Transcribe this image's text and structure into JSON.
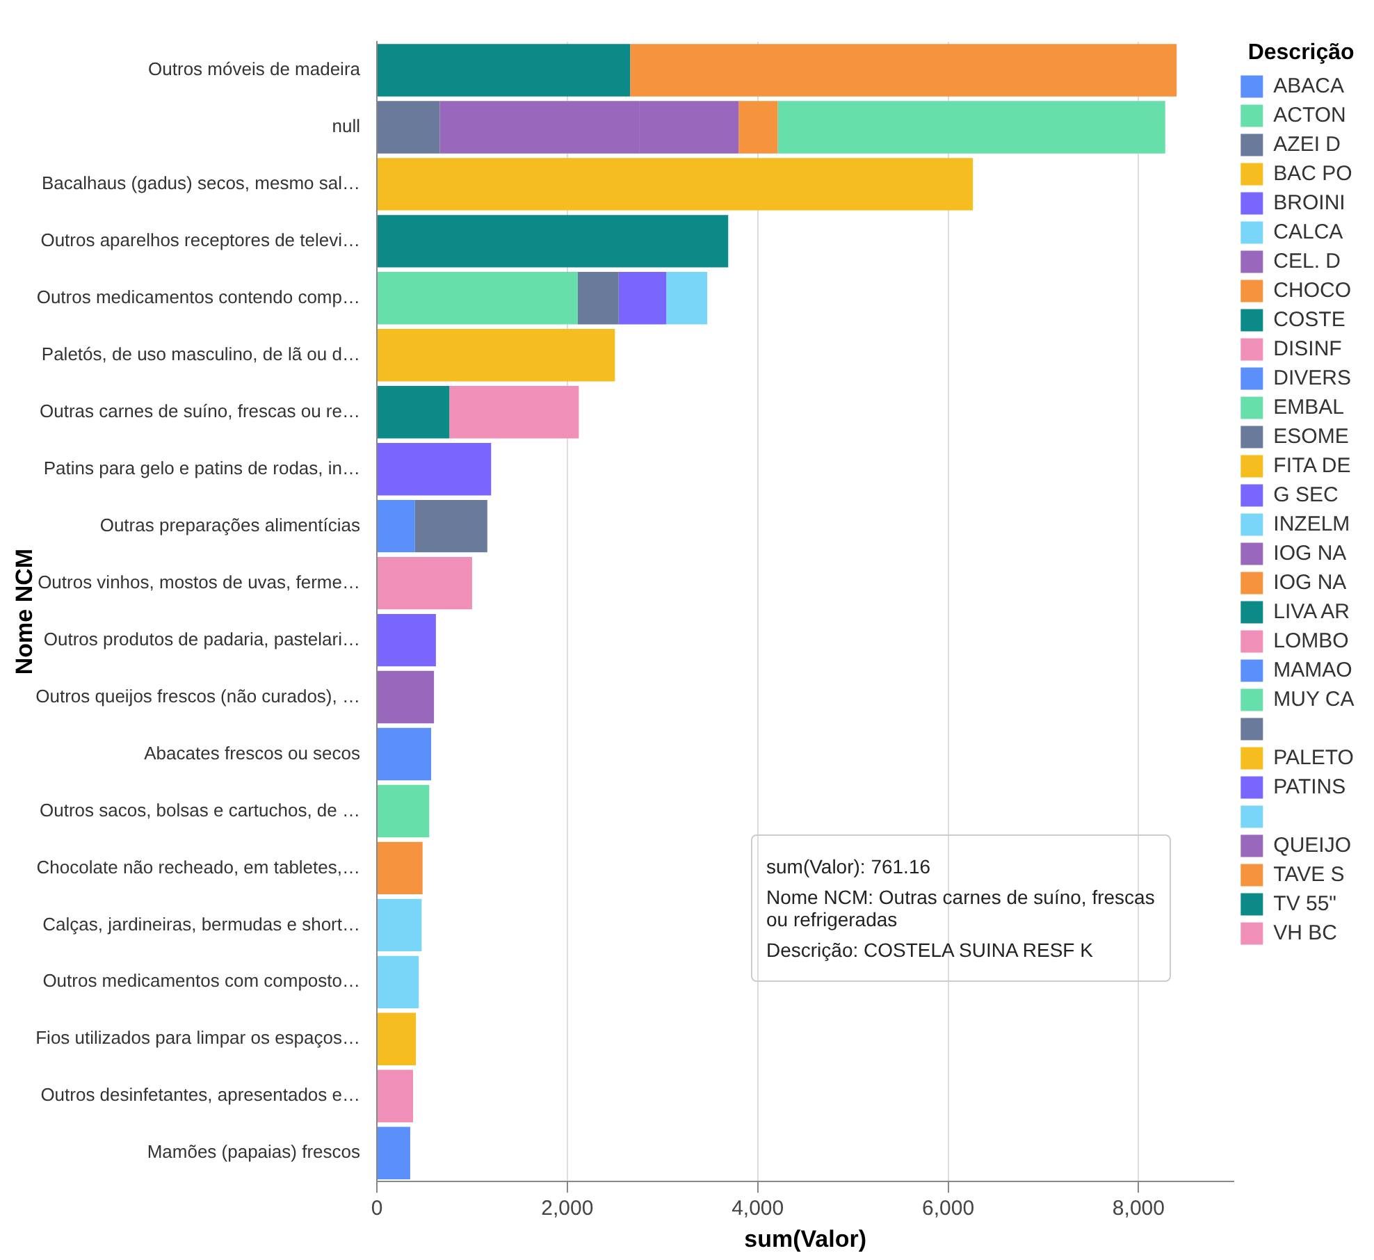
{
  "chart_data": {
    "type": "bar",
    "orientation": "horizontal",
    "stacked": true,
    "xlabel": "sum(Valor)",
    "ylabel": "Nome NCM",
    "legend_title": "Descrição",
    "legend": "right",
    "grid": "x",
    "categories": [
      "Outros móveis de madeira",
      "null",
      "Bacalhaus (gadus) secos, mesmo sal…",
      "Outros aparelhos receptores de televi…",
      "Outros medicamentos contendo comp…",
      "Paletós, de uso masculino, de lã ou d…",
      "Outras carnes de suíno, frescas ou re…",
      "Patins para gelo e patins de rodas, in…",
      "Outras preparações alimentícias",
      "Outros vinhos, mostos de uvas, ferme…",
      "Outros produtos de padaria, pastelari…",
      "Outros queijos frescos (não curados), …",
      "Abacates frescos ou secos",
      "Outros sacos, bolsas e cartuchos, de …",
      "Chocolate não recheado, em tabletes,…",
      "Calças, jardineiras, bermudas e short…",
      "Outros medicamentos com composto…",
      "Fios utilizados para limpar os espaços…",
      "Outros desinfetantes, apresentados e…",
      "Mamões (papaias) frescos"
    ],
    "xlim": [
      0,
      9000
    ],
    "xticks": [
      0,
      {
        "value": 2000,
        "label": "2,000"
      },
      {
        "value": 4000,
        "label": "4,000"
      },
      {
        "value": 6000,
        "label": "6,000"
      },
      {
        "value": 8000,
        "label": "8,000"
      }
    ],
    "series": [
      {
        "name": "ABACA",
        "color": "#5b8ff9",
        "values": [
          null,
          null,
          null,
          null,
          null,
          null,
          null,
          null,
          null,
          null,
          null,
          null,
          570,
          null,
          null,
          null,
          null,
          null,
          null,
          null
        ]
      },
      {
        "name": "ACTON",
        "color": "#66dfab",
        "values": [
          null,
          null,
          null,
          null,
          2110,
          null,
          null,
          null,
          null,
          null,
          null,
          null,
          null,
          null,
          null,
          null,
          null,
          null,
          null,
          null
        ]
      },
      {
        "name": "AZEI D",
        "color": "#6a7a9b",
        "values": [
          null,
          660,
          null,
          null,
          null,
          null,
          null,
          null,
          null,
          null,
          null,
          null,
          null,
          null,
          null,
          null,
          null,
          null,
          null,
          null
        ]
      },
      {
        "name": "BAC PO",
        "color": "#f5bd1f",
        "values": [
          null,
          null,
          6260,
          null,
          null,
          null,
          null,
          null,
          null,
          null,
          null,
          null,
          null,
          null,
          null,
          null,
          null,
          null,
          null,
          null
        ]
      },
      {
        "name": "BROINI",
        "color": "#7866fd",
        "values": [
          null,
          null,
          null,
          null,
          null,
          null,
          null,
          null,
          null,
          null,
          620,
          null,
          null,
          null,
          null,
          null,
          null,
          null,
          null,
          null
        ]
      },
      {
        "name": "CALCA",
        "color": "#7ad6f8",
        "values": [
          null,
          null,
          null,
          null,
          null,
          null,
          null,
          null,
          null,
          null,
          null,
          null,
          null,
          null,
          null,
          470,
          null,
          null,
          null,
          null
        ]
      },
      {
        "name": "CEL. D",
        "color": "#9967bb",
        "values": [
          null,
          2100,
          null,
          null,
          null,
          null,
          null,
          null,
          null,
          null,
          null,
          null,
          null,
          null,
          null,
          null,
          null,
          null,
          null,
          null
        ]
      },
      {
        "name": "CHOCO",
        "color": "#f5933f",
        "values": [
          null,
          null,
          null,
          null,
          null,
          null,
          null,
          null,
          null,
          null,
          null,
          null,
          null,
          null,
          480,
          null,
          null,
          null,
          null,
          null
        ]
      },
      {
        "name": "COSTE",
        "color": "#0b8a87",
        "values": [
          null,
          null,
          null,
          null,
          null,
          null,
          761.16,
          null,
          null,
          null,
          null,
          null,
          null,
          null,
          null,
          null,
          null,
          null,
          null,
          null
        ]
      },
      {
        "name": "DISINF",
        "color": "#f08fb8",
        "values": [
          null,
          null,
          null,
          null,
          null,
          null,
          null,
          null,
          null,
          null,
          null,
          null,
          null,
          null,
          null,
          null,
          null,
          null,
          380,
          null
        ]
      },
      {
        "name": "DIVERS",
        "color": "#5b8ff9",
        "values": [
          null,
          null,
          null,
          null,
          null,
          null,
          null,
          null,
          400,
          null,
          null,
          null,
          null,
          null,
          null,
          null,
          null,
          null,
          null,
          null
        ]
      },
      {
        "name": "EMBAL",
        "color": "#66dfab",
        "values": [
          null,
          null,
          null,
          null,
          null,
          null,
          null,
          null,
          null,
          null,
          null,
          null,
          null,
          550,
          null,
          null,
          null,
          null,
          null,
          null
        ]
      },
      {
        "name": "ESOME",
        "color": "#6a7a9b",
        "values": [
          null,
          null,
          null,
          null,
          430,
          null,
          null,
          null,
          null,
          null,
          null,
          null,
          null,
          null,
          null,
          null,
          null,
          null,
          null,
          null
        ]
      },
      {
        "name": "FITA DE",
        "color": "#f5bd1f",
        "values": [
          null,
          null,
          null,
          null,
          null,
          null,
          null,
          null,
          null,
          null,
          null,
          null,
          null,
          null,
          null,
          null,
          null,
          410,
          null,
          null
        ]
      },
      {
        "name": "G SEC",
        "color": "#7866fd",
        "values": [
          null,
          null,
          null,
          null,
          500,
          null,
          null,
          null,
          null,
          null,
          null,
          null,
          null,
          null,
          null,
          null,
          null,
          null,
          null,
          null
        ]
      },
      {
        "name": "INZELM",
        "color": "#7ad6f8",
        "values": [
          null,
          null,
          null,
          null,
          null,
          null,
          null,
          null,
          null,
          null,
          null,
          null,
          null,
          null,
          null,
          null,
          440,
          null,
          null,
          null
        ]
      },
      {
        "name": "IOG NA",
        "color": "#9967bb",
        "values": [
          null,
          1040,
          null,
          null,
          null,
          null,
          null,
          null,
          null,
          null,
          null,
          null,
          null,
          null,
          null,
          null,
          null,
          null,
          null,
          null
        ]
      },
      {
        "name": "IOG NA",
        "color": "#f5933f",
        "values": [
          null,
          410,
          null,
          null,
          null,
          null,
          null,
          null,
          null,
          null,
          null,
          null,
          null,
          null,
          null,
          null,
          null,
          null,
          null,
          null
        ]
      },
      {
        "name": "LIVA AR",
        "color": "#0b8a87",
        "values": [
          2660,
          null,
          null,
          null,
          null,
          null,
          null,
          null,
          null,
          null,
          null,
          null,
          null,
          null,
          null,
          null,
          null,
          null,
          null,
          null
        ]
      },
      {
        "name": "LOMBO",
        "color": "#f08fb8",
        "values": [
          null,
          null,
          null,
          null,
          null,
          null,
          1360,
          null,
          null,
          null,
          null,
          null,
          null,
          null,
          null,
          null,
          null,
          null,
          null,
          null
        ]
      },
      {
        "name": "MAMAO",
        "color": "#5b8ff9",
        "values": [
          null,
          null,
          null,
          null,
          null,
          null,
          null,
          null,
          null,
          null,
          null,
          null,
          null,
          null,
          null,
          null,
          null,
          null,
          null,
          350
        ]
      },
      {
        "name": "MUY CA",
        "color": "#66dfab",
        "values": [
          null,
          4070,
          null,
          null,
          null,
          null,
          null,
          null,
          null,
          null,
          null,
          null,
          null,
          null,
          null,
          null,
          null,
          null,
          null,
          null
        ]
      },
      {
        "color": "#6a7a9b",
        "values": [
          null,
          null,
          null,
          null,
          null,
          null,
          null,
          null,
          760,
          null,
          null,
          null,
          null,
          null,
          null,
          null,
          null,
          null,
          null,
          null
        ]
      },
      {
        "name": "PALETO",
        "color": "#f5bd1f",
        "values": [
          null,
          null,
          null,
          null,
          null,
          2500,
          null,
          null,
          null,
          null,
          null,
          null,
          null,
          null,
          null,
          null,
          null,
          null,
          null,
          null
        ]
      },
      {
        "name": "PATINS",
        "color": "#7866fd",
        "values": [
          null,
          null,
          null,
          null,
          null,
          null,
          null,
          1200,
          null,
          null,
          null,
          null,
          null,
          null,
          null,
          null,
          null,
          null,
          null,
          null
        ]
      },
      {
        "color": "#7ad6f8",
        "values": [
          null,
          null,
          null,
          null,
          430,
          null,
          null,
          null,
          null,
          null,
          null,
          null,
          null,
          null,
          null,
          null,
          null,
          null,
          null,
          null
        ]
      },
      {
        "name": "QUEIJO",
        "color": "#9967bb",
        "values": [
          null,
          null,
          null,
          null,
          null,
          null,
          null,
          null,
          null,
          null,
          null,
          600,
          null,
          null,
          null,
          null,
          null,
          null,
          null,
          null
        ]
      },
      {
        "name": "TAVE S",
        "color": "#f5933f",
        "values": [
          5740,
          null,
          null,
          null,
          null,
          null,
          null,
          null,
          null,
          null,
          null,
          null,
          null,
          null,
          null,
          null,
          null,
          null,
          null,
          null
        ]
      },
      {
        "name": "TV 55\"",
        "color": "#0b8a87",
        "values": [
          null,
          null,
          null,
          3690,
          null,
          null,
          null,
          null,
          null,
          null,
          null,
          null,
          null,
          null,
          null,
          null,
          null,
          null,
          null,
          null
        ]
      },
      {
        "name": "VH BC",
        "color": "#f08fb8",
        "values": [
          null,
          null,
          null,
          null,
          null,
          null,
          null,
          null,
          null,
          1000,
          null,
          null,
          null,
          null,
          null,
          null,
          null,
          null,
          null,
          null
        ]
      }
    ],
    "annotations": [
      "sum(Valor): 761.16",
      "Nome NCM: Outras carnes de suíno, frescas ou refrigeradas",
      "Descrição: COSTELA SUINA RESF K"
    ]
  }
}
